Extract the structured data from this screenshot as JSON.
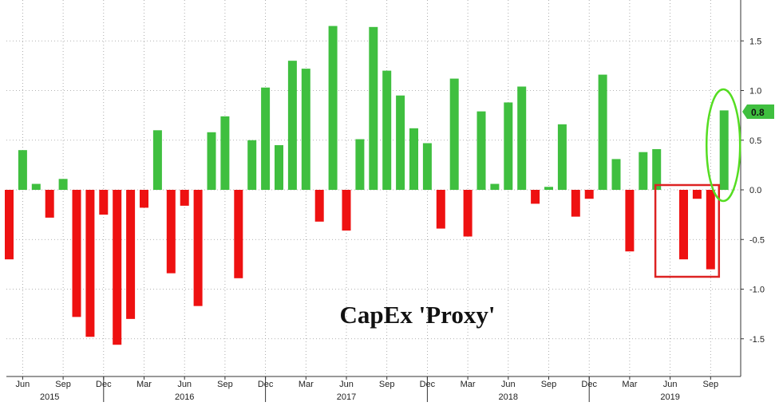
{
  "chart_data": {
    "type": "bar",
    "title": "CapEx 'Proxy'",
    "xlabel": "",
    "ylabel": "",
    "ylim": [
      -1.85,
      1.85
    ],
    "grid": true,
    "y_axis_side": "right",
    "y_ticks": [
      "1.5",
      "1.0",
      "0.5",
      "0.0",
      "-0.5",
      "-1.0",
      "-1.5"
    ],
    "y_tick_values": [
      1.5,
      1.0,
      0.5,
      0.0,
      -0.5,
      -1.0,
      -1.5
    ],
    "x_month_ticks": [
      {
        "label": "Jun",
        "index": 1
      },
      {
        "label": "Sep",
        "index": 4
      },
      {
        "label": "Dec",
        "index": 7
      },
      {
        "label": "Mar",
        "index": 10
      },
      {
        "label": "Jun",
        "index": 13
      },
      {
        "label": "Sep",
        "index": 16
      },
      {
        "label": "Dec",
        "index": 19
      },
      {
        "label": "Mar",
        "index": 22
      },
      {
        "label": "Jun",
        "index": 25
      },
      {
        "label": "Sep",
        "index": 28
      },
      {
        "label": "Dec",
        "index": 31
      },
      {
        "label": "Mar",
        "index": 34
      },
      {
        "label": "Jun",
        "index": 37
      },
      {
        "label": "Sep",
        "index": 40
      },
      {
        "label": "Dec",
        "index": 43
      },
      {
        "label": "Mar",
        "index": 46
      },
      {
        "label": "Jun",
        "index": 49
      },
      {
        "label": "Sep",
        "index": 52
      }
    ],
    "x_year_labels": [
      {
        "label": "2015",
        "index": 3
      },
      {
        "label": "2016",
        "index": 13
      },
      {
        "label": "2017",
        "index": 25
      },
      {
        "label": "2018",
        "index": 37
      },
      {
        "label": "2019",
        "index": 49
      }
    ],
    "x_year_separators": [
      7,
      19,
      31,
      43
    ],
    "categories": [
      "May 2015",
      "Jun 2015",
      "Jul 2015",
      "Aug 2015",
      "Sep 2015",
      "Oct 2015",
      "Nov 2015",
      "Dec 2015",
      "Jan 2016",
      "Feb 2016",
      "Mar 2016",
      "Apr 2016",
      "May 2016",
      "Jun 2016",
      "Jul 2016",
      "Aug 2016",
      "Sep 2016",
      "Oct 2016",
      "Nov 2016",
      "Dec 2016",
      "Jan 2017",
      "Feb 2017",
      "Mar 2017",
      "Apr 2017",
      "May 2017",
      "Jun 2017",
      "Jul 2017",
      "Aug 2017",
      "Sep 2017",
      "Oct 2017",
      "Nov 2017",
      "Dec 2017",
      "Jan 2018",
      "Feb 2018",
      "Mar 2018",
      "Apr 2018",
      "May 2018",
      "Jun 2018",
      "Jul 2018",
      "Aug 2018",
      "Sep 2018",
      "Oct 2018",
      "Nov 2018",
      "Dec 2018",
      "Jan 2019",
      "Feb 2019",
      "Mar 2019",
      "Apr 2019",
      "May 2019",
      "Jun 2019",
      "Jul 2019",
      "Aug 2019",
      "Sep 2019",
      "Oct 2019"
    ],
    "values": [
      -0.7,
      0.4,
      0.06,
      -0.28,
      0.11,
      -1.28,
      -1.48,
      -0.25,
      -1.56,
      -1.3,
      -0.18,
      0.6,
      -0.84,
      -0.16,
      -1.17,
      0.58,
      0.74,
      -0.89,
      0.5,
      1.03,
      0.45,
      1.3,
      1.22,
      -0.32,
      1.65,
      -0.41,
      0.51,
      1.64,
      1.2,
      0.95,
      0.62,
      0.47,
      -0.39,
      1.12,
      -0.47,
      0.79,
      0.06,
      0.88,
      1.04,
      -0.14,
      0.03,
      0.66,
      -0.27,
      -0.09,
      1.16,
      0.31,
      -0.62,
      0.38,
      0.41,
      0,
      -0.7,
      -0.09,
      -0.8,
      0.8
    ],
    "last_value_label": "0.8",
    "annotations": {
      "highlight_box_start_index": 49,
      "highlight_box_end_index": 52,
      "highlight_ellipse_index": 53
    }
  },
  "colors": {
    "positive": "#3fbf3f",
    "negative": "#ee1111",
    "last_label_bg": "#3fbf3f",
    "grid": "#9a9a9a",
    "axis": "#333333",
    "highlight_box": "#dd2222",
    "highlight_ellipse": "#55dd22"
  }
}
